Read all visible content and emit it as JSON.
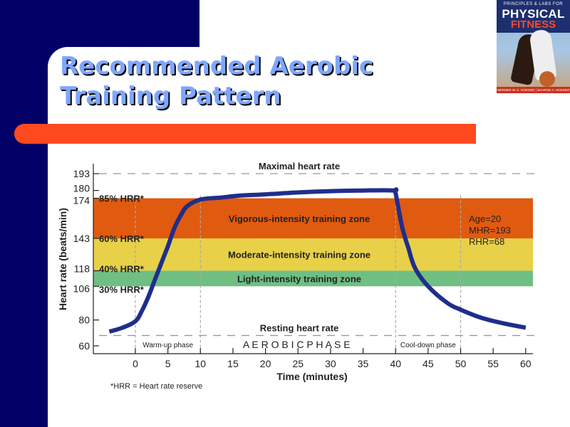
{
  "slide": {
    "title_line1": "Recommended Aerobic",
    "title_line2": "Training Pattern",
    "colors": {
      "navy": "#000066",
      "title": "#7FA6FF",
      "accent_bar": "#FF4A1F"
    }
  },
  "book_cover": {
    "line1": "PRINCIPLES & LABS FOR",
    "line2": "PHYSICAL",
    "line3": "FITNESS",
    "authors": "WERNER W. K. HOEGER | SHARON A. HOEGER"
  },
  "chart_data": {
    "type": "line",
    "title": "",
    "xlabel": "Time (minutes)",
    "ylabel": "Heart rate (beats/min)",
    "xlim": [
      -4,
      61
    ],
    "ylim": [
      55,
      196
    ],
    "x_ticks": [
      0,
      5,
      10,
      15,
      20,
      25,
      30,
      35,
      40,
      45,
      50,
      55,
      60
    ],
    "y_ticks": [
      60,
      80,
      106,
      118,
      143,
      174,
      180,
      193
    ],
    "reference_lines": [
      {
        "label": "Maximal heart rate",
        "y": 193
      },
      {
        "label": "Resting heart rate",
        "y": 68
      }
    ],
    "zones": [
      {
        "label": "Vigorous-intensity training zone",
        "y0": 143,
        "y1": 174,
        "color": "#E05A10"
      },
      {
        "label": "Moderate-intensity training zone",
        "y0": 118,
        "y1": 143,
        "color": "#E8D048"
      },
      {
        "label": "Light-intensity training zone",
        "y0": 106,
        "y1": 118,
        "color": "#6FBF83"
      }
    ],
    "hrr_labels": [
      {
        "label": "85% HRR*",
        "y": 174
      },
      {
        "label": "60% HRR*",
        "y": 143
      },
      {
        "label": "40% HRR*",
        "y": 118
      },
      {
        "label": "30% HRR*",
        "y": 106
      }
    ],
    "phases": [
      {
        "label": "Warm-up phase",
        "x0": 0,
        "x1": 10,
        "style": "small"
      },
      {
        "label": "A E R O B I C   P H A S E",
        "x0": 10,
        "x1": 40,
        "style": "spaced"
      },
      {
        "label": "Cool-down phase",
        "x0": 40,
        "x1": 50,
        "style": "small"
      }
    ],
    "phase_boundaries": [
      0,
      10,
      40,
      50
    ],
    "info_box": [
      "Age=20",
      "MHR=193",
      "RHR=68"
    ],
    "footnote": "*HRR = Heart rate reserve",
    "series": [
      {
        "name": "Heart rate",
        "color": "#1F2E8C",
        "x": [
          -4,
          -2,
          0,
          1,
          2,
          3,
          4,
          5,
          6,
          7,
          8,
          10,
          13,
          16,
          20,
          25,
          30,
          35,
          39.7,
          40,
          41,
          42,
          43,
          45,
          48,
          50,
          53,
          56,
          60
        ],
        "y": [
          71,
          74,
          79,
          87,
          98,
          111,
          124,
          137,
          151,
          161,
          168,
          173,
          174.5,
          176,
          177,
          178.5,
          179.5,
          180,
          180,
          178,
          152,
          135,
          120,
          106,
          93,
          88,
          82,
          78,
          74
        ]
      }
    ]
  }
}
